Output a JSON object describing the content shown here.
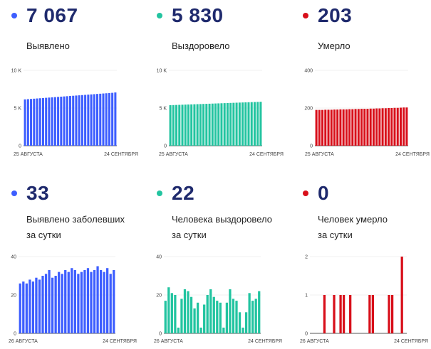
{
  "cards": [
    {
      "value": "7 067",
      "label_line1": "Выявлено",
      "label_line2": "",
      "color": "#3d5eff"
    },
    {
      "value": "5 830",
      "label_line1": "Выздоровело",
      "label_line2": "",
      "color": "#22c4a0"
    },
    {
      "value": "203",
      "label_line1": "Умерло",
      "label_line2": "",
      "color": "#d80f1a"
    },
    {
      "value": "33",
      "label_line1": "Выявлено заболевших",
      "label_line2": "за сутки",
      "color": "#3d5eff"
    },
    {
      "value": "22",
      "label_line1": "Человека выздоровело",
      "label_line2": "за сутки",
      "color": "#22c4a0"
    },
    {
      "value": "0",
      "label_line1": "Человек умерло",
      "label_line2": "за сутки",
      "color": "#d80f1a"
    }
  ],
  "chart_data": [
    {
      "type": "bar",
      "color": "#3d5eff",
      "title": "",
      "xlabel": "",
      "ylabel": "",
      "ylim": [
        0,
        10000
      ],
      "yticks": [
        0,
        5000,
        10000
      ],
      "ytick_labels": [
        "0",
        "5 K",
        "10 K"
      ],
      "x_start_label": "25 АВГУСТА",
      "x_end_label": "24 СЕНТЯБРЯ",
      "values": [
        6150,
        6180,
        6210,
        6240,
        6270,
        6300,
        6330,
        6360,
        6390,
        6420,
        6450,
        6480,
        6510,
        6540,
        6570,
        6600,
        6630,
        6660,
        6690,
        6720,
        6750,
        6780,
        6810,
        6840,
        6870,
        6900,
        6930,
        6960,
        6990,
        7020,
        7067
      ]
    },
    {
      "type": "bar",
      "color": "#22c4a0",
      "title": "",
      "xlabel": "",
      "ylabel": "",
      "ylim": [
        0,
        10000
      ],
      "yticks": [
        0,
        5000,
        10000
      ],
      "ytick_labels": [
        "0",
        "5 K",
        "10 K"
      ],
      "x_start_label": "25 АВГУСТА",
      "x_end_label": "24 СЕНТЯБРЯ",
      "values": [
        5380,
        5395,
        5410,
        5425,
        5440,
        5455,
        5470,
        5485,
        5500,
        5515,
        5530,
        5545,
        5560,
        5575,
        5590,
        5605,
        5620,
        5635,
        5650,
        5665,
        5680,
        5695,
        5710,
        5725,
        5740,
        5755,
        5770,
        5785,
        5800,
        5815,
        5830
      ]
    },
    {
      "type": "bar",
      "color": "#d80f1a",
      "title": "",
      "xlabel": "",
      "ylabel": "",
      "ylim": [
        0,
        400
      ],
      "yticks": [
        0,
        200,
        400
      ],
      "ytick_labels": [
        "0",
        "200",
        "400"
      ],
      "x_start_label": "25 АВГУСТА",
      "x_end_label": "24 СЕНТЯБРЯ",
      "values": [
        190,
        190,
        190,
        191,
        191,
        191,
        192,
        192,
        193,
        193,
        193,
        194,
        194,
        195,
        195,
        196,
        196,
        196,
        197,
        197,
        198,
        198,
        199,
        199,
        200,
        200,
        201,
        201,
        202,
        203,
        203
      ]
    },
    {
      "type": "bar",
      "color": "#3d5eff",
      "title": "",
      "xlabel": "",
      "ylabel": "",
      "ylim": [
        0,
        40
      ],
      "yticks": [
        0,
        20,
        40
      ],
      "ytick_labels": [
        "0",
        "20",
        "40"
      ],
      "x_start_label": "26 АВГУСТА",
      "x_end_label": "24 СЕНТЯБРЯ",
      "values": [
        26,
        27,
        26,
        28,
        27,
        29,
        28,
        30,
        31,
        33,
        29,
        30,
        32,
        31,
        33,
        32,
        34,
        33,
        31,
        32,
        33,
        34,
        32,
        33,
        35,
        33,
        32,
        34,
        31,
        33
      ]
    },
    {
      "type": "bar",
      "color": "#22c4a0",
      "title": "",
      "xlabel": "",
      "ylabel": "",
      "ylim": [
        0,
        40
      ],
      "yticks": [
        0,
        20,
        40
      ],
      "ytick_labels": [
        "0",
        "20",
        "40"
      ],
      "x_start_label": "26 АВГУСТА",
      "x_end_label": "24 СЕНТЯБРЯ",
      "values": [
        17,
        24,
        21,
        20,
        3,
        18,
        23,
        22,
        19,
        13,
        16,
        3,
        15,
        20,
        23,
        19,
        17,
        16,
        3,
        16,
        23,
        18,
        17,
        11,
        3,
        11,
        21,
        17,
        18,
        22
      ]
    },
    {
      "type": "bar",
      "color": "#d80f1a",
      "title": "",
      "xlabel": "",
      "ylabel": "",
      "ylim": [
        0,
        2
      ],
      "yticks": [
        0,
        1,
        2
      ],
      "ytick_labels": [
        "0",
        "1",
        "2"
      ],
      "x_start_label": "26 АВГУСТА",
      "x_end_label": "24 СЕНТЯБРЯ",
      "values": [
        0,
        0,
        0,
        0,
        1,
        0,
        0,
        1,
        0,
        1,
        1,
        0,
        1,
        0,
        0,
        0,
        0,
        0,
        1,
        1,
        0,
        0,
        0,
        0,
        1,
        1,
        0,
        0,
        2,
        0
      ]
    }
  ]
}
